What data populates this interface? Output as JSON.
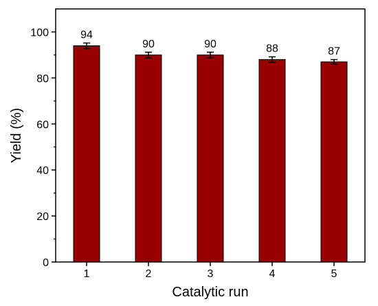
{
  "chart_data": {
    "type": "bar",
    "categories": [
      "1",
      "2",
      "3",
      "4",
      "5"
    ],
    "values": [
      94,
      90,
      90,
      88,
      87
    ],
    "errors": [
      1.2,
      1.2,
      1.2,
      1.2,
      1.0
    ],
    "data_labels": [
      "94",
      "90",
      "90",
      "88",
      "87"
    ],
    "xlabel": "Catalytic run",
    "ylabel": "Yield (%)",
    "ylim": [
      0,
      110
    ],
    "yticks": [
      0,
      20,
      40,
      60,
      80,
      100
    ],
    "ytick_labels": [
      "0",
      "20",
      "40",
      "60",
      "80",
      "100"
    ],
    "grid": false,
    "bar_color": "#990000",
    "bar_edge_color": "#000000"
  }
}
